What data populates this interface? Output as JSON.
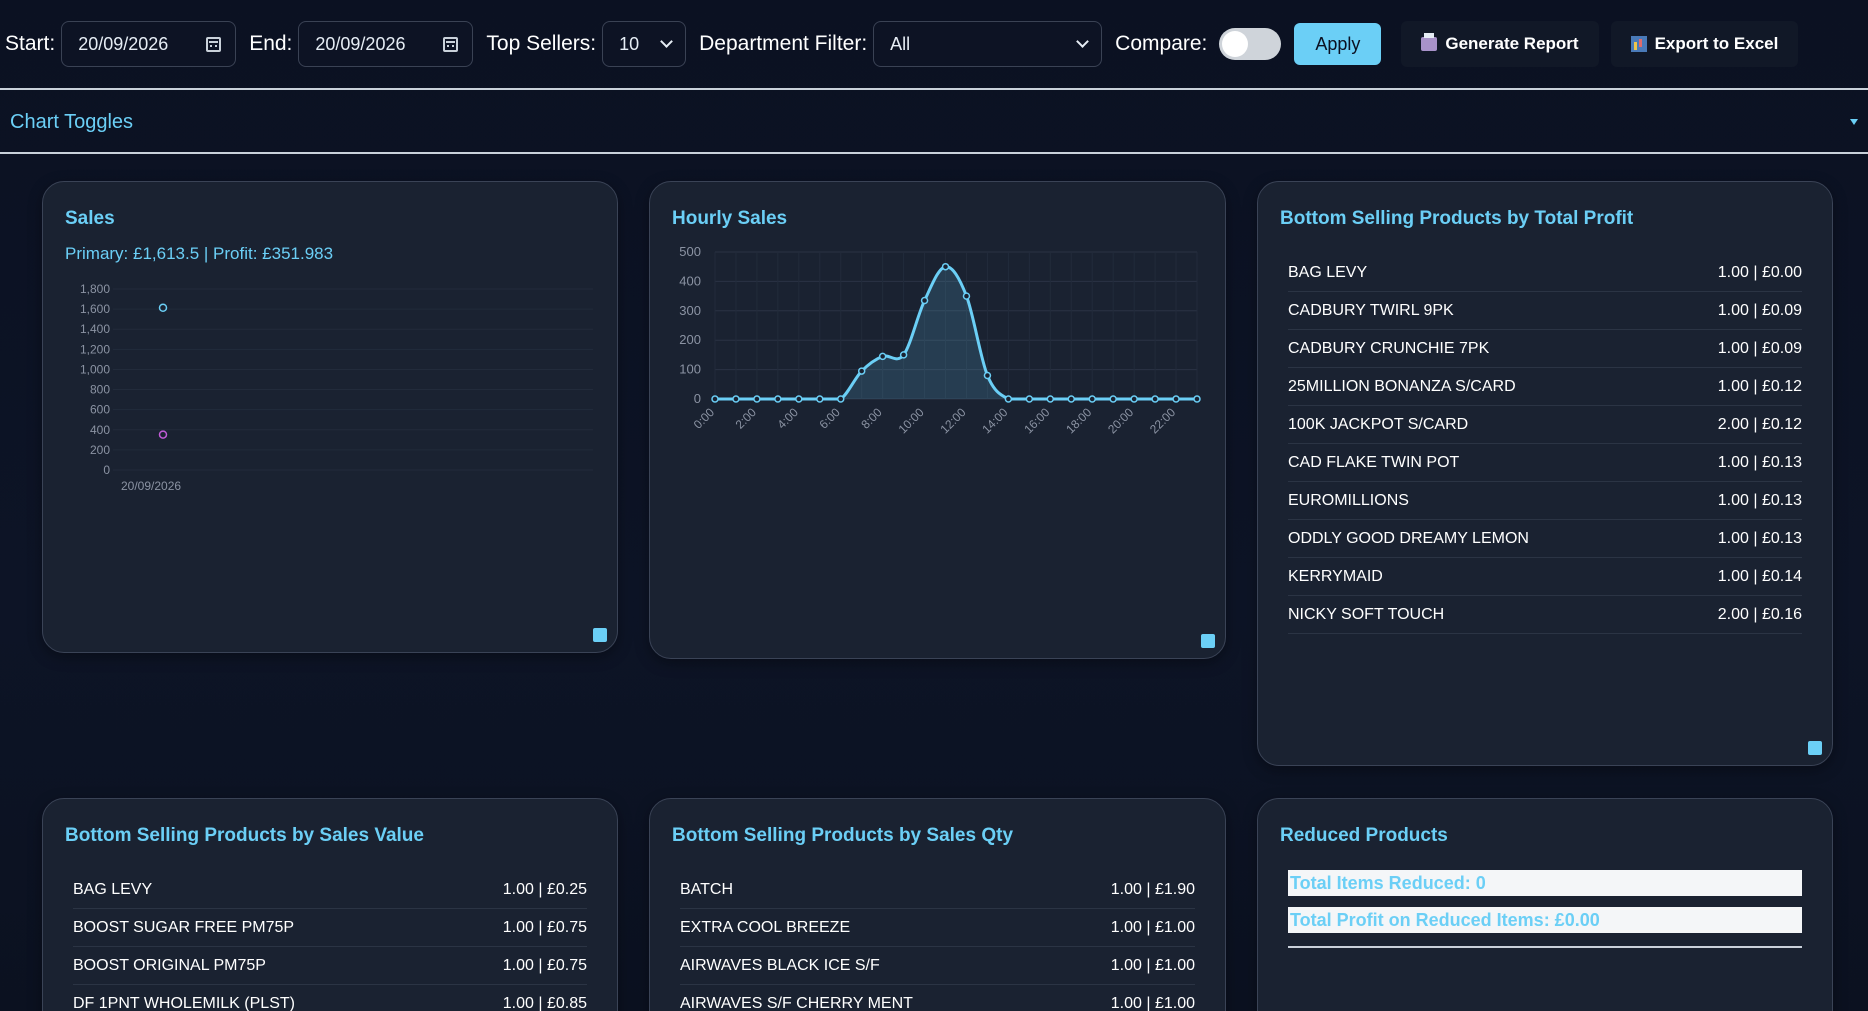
{
  "toolbar": {
    "start_label": "Start:",
    "start_value": "20/09/2026",
    "end_label": "End:",
    "end_value": "20/09/2026",
    "top_sellers_label": "Top Sellers:",
    "top_sellers_value": "10",
    "department_label": "Department Filter:",
    "department_value": "All",
    "compare_label": "Compare:",
    "compare_on": false,
    "apply_label": "Apply",
    "generate_report_label": "Generate Report",
    "export_label": "Export to Excel"
  },
  "chart_toggles": {
    "label": "Chart Toggles"
  },
  "sales": {
    "title": "Sales",
    "summary": "Primary: £1,613.5 | Profit: £351.983",
    "chart_data": {
      "type": "scatter",
      "x": [
        "20/09/2026"
      ],
      "series": [
        {
          "values": [
            1613.5
          ],
          "color": "#6bcff6"
        },
        {
          "values": [
            351.983
          ],
          "color": "#c05bd6"
        }
      ],
      "ylim": [
        0,
        1800
      ],
      "yticks": [
        "1,800",
        "1,600",
        "1,400",
        "1,200",
        "1,000",
        "800",
        "600",
        "400",
        "200",
        "0"
      ]
    }
  },
  "hourly": {
    "title": "Hourly Sales",
    "chart_data": {
      "type": "area",
      "x": [
        "0:00",
        "1:00",
        "2:00",
        "3:00",
        "4:00",
        "5:00",
        "6:00",
        "7:00",
        "8:00",
        "9:00",
        "10:00",
        "11:00",
        "12:00",
        "13:00",
        "14:00",
        "15:00",
        "16:00",
        "17:00",
        "18:00",
        "19:00",
        "20:00",
        "21:00",
        "22:00",
        "23:00"
      ],
      "values": [
        0,
        0,
        0,
        0,
        0,
        0,
        0,
        95,
        145,
        150,
        335,
        450,
        350,
        80,
        0,
        0,
        0,
        0,
        0,
        0,
        0,
        0,
        0,
        0
      ],
      "xticks": [
        "0:00",
        "2:00",
        "4:00",
        "6:00",
        "8:00",
        "10:00",
        "12:00",
        "14:00",
        "16:00",
        "18:00",
        "20:00",
        "22:00"
      ],
      "yticks": [
        "500",
        "400",
        "300",
        "200",
        "100",
        "0"
      ],
      "ylim": [
        0,
        500
      ],
      "color": "#6bcff6"
    }
  },
  "bottom_profit": {
    "title": "Bottom Selling Products by Total Profit",
    "rows": [
      {
        "name": "BAG LEVY",
        "value": "1.00 | £0.00"
      },
      {
        "name": "CADBURY TWIRL 9PK",
        "value": "1.00 | £0.09"
      },
      {
        "name": "CADBURY CRUNCHIE 7PK",
        "value": "1.00 | £0.09"
      },
      {
        "name": "25MILLION BONANZA S/CARD",
        "value": "1.00 | £0.12"
      },
      {
        "name": "100K JACKPOT S/CARD",
        "value": "2.00 | £0.12"
      },
      {
        "name": "CAD FLAKE TWIN POT",
        "value": "1.00 | £0.13"
      },
      {
        "name": "EUROMILLIONS",
        "value": "1.00 | £0.13"
      },
      {
        "name": "ODDLY GOOD DREAMY LEMON",
        "value": "1.00 | £0.13"
      },
      {
        "name": "KERRYMAID",
        "value": "1.00 | £0.14"
      },
      {
        "name": "NICKY SOFT TOUCH",
        "value": "2.00 | £0.16"
      }
    ]
  },
  "bottom_value": {
    "title": "Bottom Selling Products by Sales Value",
    "rows": [
      {
        "name": "BAG LEVY",
        "value": "1.00 | £0.25"
      },
      {
        "name": "BOOST SUGAR FREE PM75P",
        "value": "1.00 | £0.75"
      },
      {
        "name": "BOOST ORIGINAL PM75P",
        "value": "1.00 | £0.75"
      },
      {
        "name": "DF 1PNT WHOLEMILK (PLST)",
        "value": "1.00 | £0.85"
      }
    ]
  },
  "bottom_qty": {
    "title": "Bottom Selling Products by Sales Qty",
    "rows": [
      {
        "name": "BATCH",
        "value": "1.00 | £1.90"
      },
      {
        "name": "EXTRA COOL BREEZE",
        "value": "1.00 | £1.00"
      },
      {
        "name": "AIRWAVES BLACK ICE S/F",
        "value": "1.00 | £1.00"
      },
      {
        "name": "AIRWAVES S/F CHERRY MENT",
        "value": "1.00 | £1.00"
      }
    ]
  },
  "reduced": {
    "title": "Reduced Products",
    "total_items": "Total Items Reduced: 0",
    "total_profit": "Total Profit on Reduced Items: £0.00"
  },
  "icons": {
    "calendar": "calendar-icon",
    "chevron": "chevron-down-icon",
    "printer": "printer-icon",
    "excel": "excel-icon",
    "collapse": "triangle-down-icon"
  },
  "colors": {
    "accent": "#6bcff6",
    "profit": "#c05bd6",
    "card_bg": "#1a2231"
  }
}
